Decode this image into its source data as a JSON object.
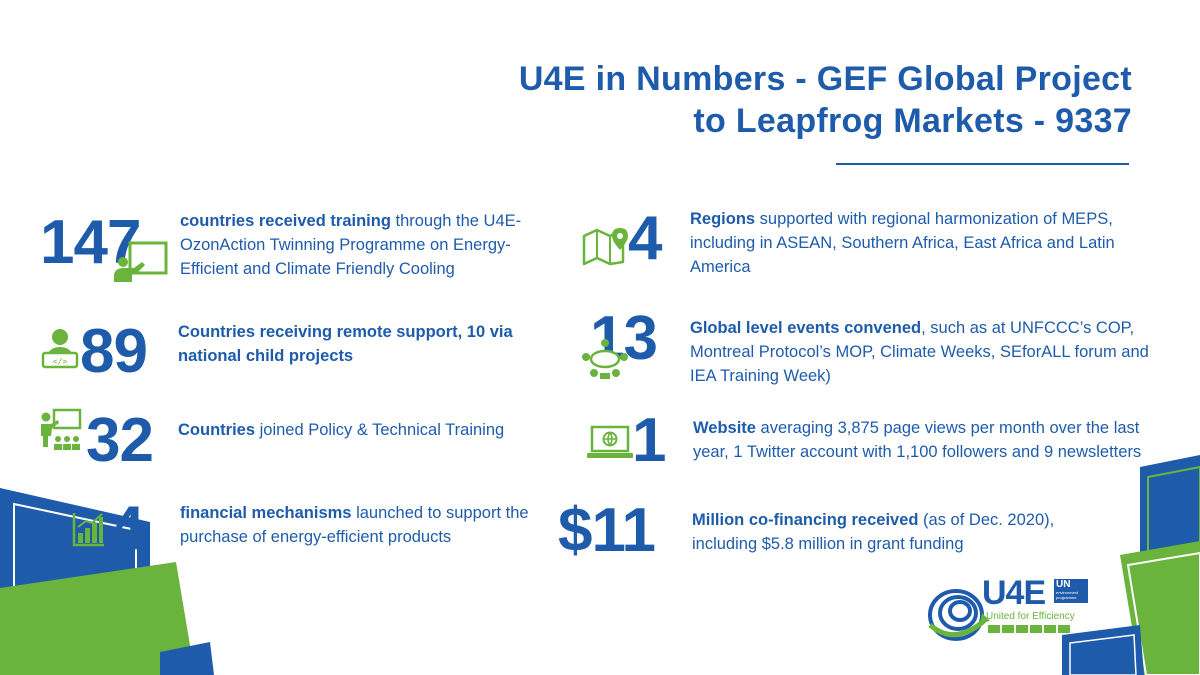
{
  "title": {
    "line1": "U4E in Numbers - GEF Global Project",
    "line2": "to Leapfrog Markets - 9337"
  },
  "colors": {
    "blue": "#1e5cab",
    "green": "#6ab43e"
  },
  "stats": {
    "countries_training": {
      "number": "147",
      "bold": "countries received training",
      "text": " through the U4E-OzonAction Twinning Programme on Energy-Efficient and Climate Friendly Cooling",
      "icon": "presenter-screen-icon"
    },
    "remote_support": {
      "number": "89",
      "bold": "Countries receiving remote support,  10 via national  child projects",
      "text": "",
      "icon": "person-laptop-icon"
    },
    "policy_training": {
      "number": "32",
      "bold": "Countries",
      "text": " joined Policy & Technical Training",
      "icon": "classroom-icon"
    },
    "financial": {
      "number": "4",
      "bold": "financial mechanisms",
      "text": " launched to support the purchase of energy-efficient  products",
      "icon": "bar-chart-icon"
    },
    "regions": {
      "number": "4",
      "bold": "Regions",
      "text": " supported with regional harmonization of MEPS, including in ASEAN, Southern Africa, East Africa and Latin America",
      "icon": "map-pin-icon"
    },
    "events": {
      "number": "13",
      "bold": "Global level events convened",
      "text": ", such as at UNFCCC’s COP, Montreal Protocol’s MOP, Climate Weeks, SEforALL forum and IEA Training Week)",
      "icon": "meeting-table-icon"
    },
    "website": {
      "number": "1",
      "bold": "Website",
      "text": " averaging 3,875 page views per month over the last year, 1 Twitter account with 1,100 followers and 9 newsletters",
      "icon": "laptop-globe-icon"
    },
    "cofinancing": {
      "number": "$11",
      "bold": "Million co-financing received",
      "text": " (as of Dec. 2020), including $5.8 million in grant funding",
      "icon": ""
    }
  },
  "logo": {
    "brand": "U4E",
    "un": "UN",
    "un_sub": "environment programme",
    "tagline": "United for Efficiency"
  }
}
